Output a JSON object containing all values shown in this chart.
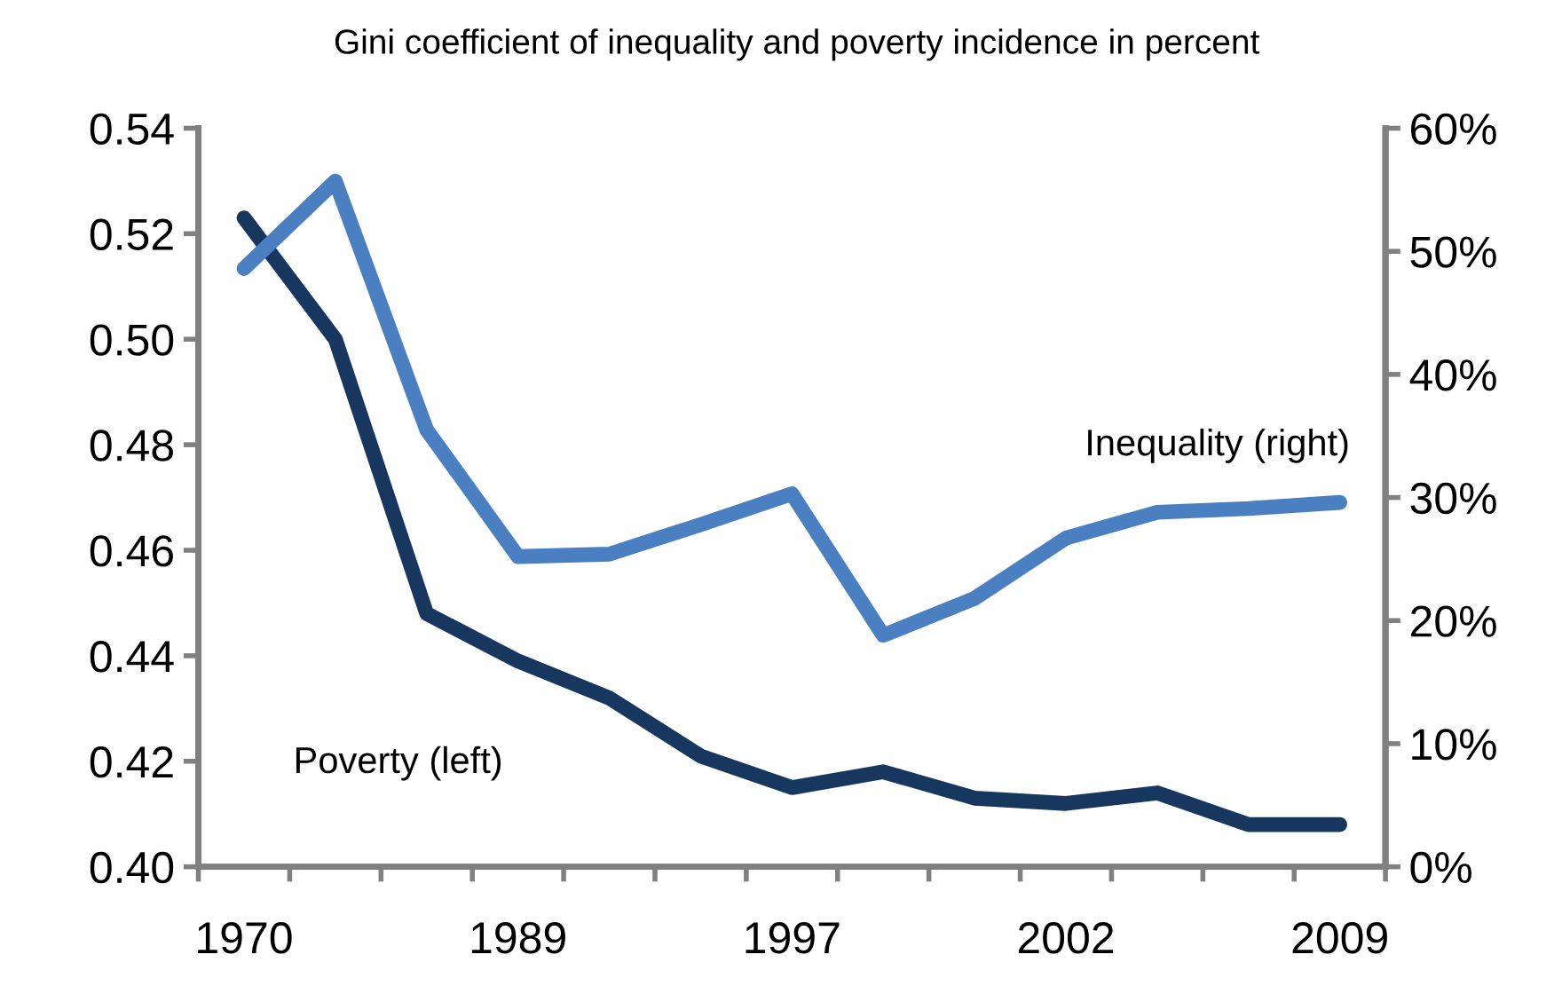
{
  "chart_data": {
    "type": "line",
    "title": "Gini coefficient of inequality and poverty incidence in percent",
    "categories": [
      "1970",
      null,
      null,
      "1989",
      null,
      null,
      "1997",
      null,
      null,
      "2002",
      null,
      null,
      "2009"
    ],
    "series": [
      {
        "name": "Inequality (right)",
        "color": "#4a7fc1",
        "axis": "y2",
        "values": [
          48.6,
          55.7,
          35.5,
          25.2,
          25.4,
          27.8,
          30.3,
          18.8,
          21.8,
          26.7,
          28.8,
          29.1,
          29.6
        ]
      },
      {
        "name": "Poverty (left)",
        "color": "#17375e",
        "values": [
          0.523,
          0.5,
          0.448,
          0.439,
          0.432,
          0.421,
          0.415,
          0.418,
          0.413,
          0.412,
          0.414,
          0.408,
          0.408
        ]
      }
    ],
    "ylim": [
      0.4,
      0.54
    ],
    "yticks": [
      {
        "value": 0.4,
        "label": "0.40"
      },
      {
        "value": 0.42,
        "label": "0.42"
      },
      {
        "value": 0.44,
        "label": "0.44"
      },
      {
        "value": 0.46,
        "label": "0.46"
      },
      {
        "value": 0.48,
        "label": "0.48"
      },
      {
        "value": 0.5,
        "label": "0.50"
      },
      {
        "value": 0.52,
        "label": "0.52"
      },
      {
        "value": 0.54,
        "label": "0.54"
      }
    ],
    "y2lim": [
      0,
      60
    ],
    "y2ticks": [
      {
        "value": 0,
        "label": "0%"
      },
      {
        "value": 10,
        "label": "10%"
      },
      {
        "value": 20,
        "label": "20%"
      },
      {
        "value": 30,
        "label": "30%"
      },
      {
        "value": 40,
        "label": "40%"
      },
      {
        "value": 50,
        "label": "50%"
      },
      {
        "value": 60,
        "label": "60%"
      }
    ],
    "grid": false,
    "legend": false,
    "marker": "none",
    "line_style": "solid"
  }
}
